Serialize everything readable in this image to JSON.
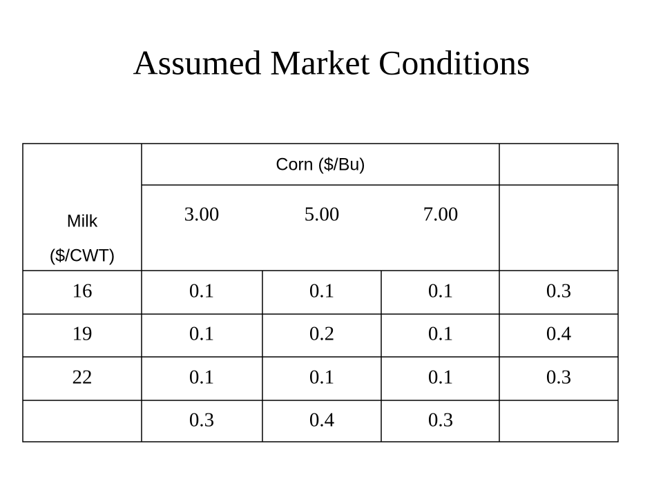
{
  "title": "Assumed Market Conditions",
  "header": {
    "milk_label": [
      "Milk",
      "($/CWT)"
    ],
    "corn_label": "Corn ($/Bu)",
    "corn_prices": [
      "3.00",
      "5.00",
      "7.00"
    ]
  },
  "table": {
    "rows": [
      [
        "16",
        "0.1",
        "0.1",
        "0.1",
        "0.3"
      ],
      [
        "19",
        "0.1",
        "0.2",
        "0.1",
        "0.4"
      ],
      [
        "22",
        "0.1",
        "0.1",
        "0.1",
        "0.3"
      ]
    ],
    "totals_row": [
      "0.3",
      "0.4",
      "0.3"
    ]
  }
}
